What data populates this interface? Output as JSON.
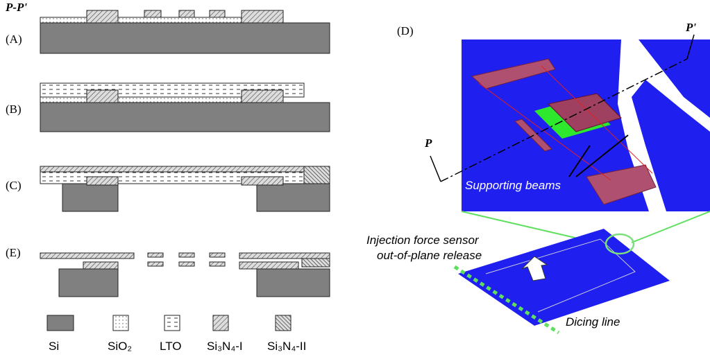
{
  "section_label": "P-P'",
  "panels": [
    {
      "label": "(A)"
    },
    {
      "label": "(B)"
    },
    {
      "label": "(C)"
    },
    {
      "label": "(E)"
    }
  ],
  "legend": [
    {
      "label": "Si"
    },
    {
      "label": "SiO₂"
    },
    {
      "label": "LTO"
    },
    {
      "label": "Si₃N₄-I"
    },
    {
      "label": "Si₃N₄-II"
    }
  ],
  "detail": {
    "label": "(D)",
    "p_label": "P",
    "p_prime_label": "P'",
    "beams_label": "Supporting beams"
  },
  "device": {
    "sensor_label": [
      "Injection force sensor",
      "out-of-plane release"
    ],
    "dicing_label": "Dicing line"
  }
}
